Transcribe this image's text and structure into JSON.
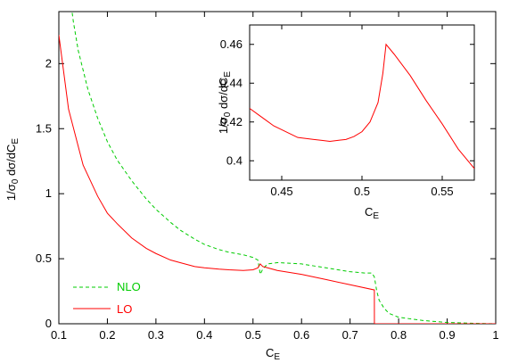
{
  "chart_data": [
    {
      "type": "line",
      "xlabel": "C_E",
      "ylabel": "1/σ_0 dσ/dC_E",
      "xlim": [
        0.1,
        1.0
      ],
      "ylim": [
        0,
        2.4
      ],
      "xticks": [
        "0.1",
        "0.2",
        "0.3",
        "0.4",
        "0.5",
        "0.6",
        "0.7",
        "0.8",
        "0.9",
        "1"
      ],
      "yticks": [
        "0",
        "0.5",
        "1",
        "1.5",
        "2"
      ],
      "grid": false,
      "legend": "bottom-left",
      "series": [
        {
          "name": "NLO",
          "color": "#00cc00",
          "style": "dashed",
          "x": [
            0.1,
            0.12,
            0.13,
            0.14,
            0.15,
            0.16,
            0.18,
            0.2,
            0.22,
            0.25,
            0.28,
            0.3,
            0.33,
            0.35,
            0.38,
            0.4,
            0.43,
            0.45,
            0.48,
            0.5,
            0.51,
            0.515,
            0.52,
            0.53,
            0.55,
            0.6,
            0.65,
            0.7,
            0.73,
            0.745,
            0.75,
            0.755,
            0.76,
            0.77,
            0.78,
            0.8,
            0.85,
            0.9,
            0.95,
            1.0
          ],
          "y": [
            3.2,
            2.6,
            2.32,
            2.1,
            1.95,
            1.8,
            1.58,
            1.4,
            1.26,
            1.1,
            0.96,
            0.88,
            0.78,
            0.72,
            0.65,
            0.61,
            0.57,
            0.55,
            0.53,
            0.51,
            0.49,
            0.38,
            0.42,
            0.46,
            0.47,
            0.46,
            0.43,
            0.4,
            0.39,
            0.39,
            0.36,
            0.25,
            0.18,
            0.12,
            0.08,
            0.05,
            0.025,
            0.01,
            0.004,
            0.0
          ]
        },
        {
          "name": "LO",
          "color": "#ff0000",
          "style": "solid",
          "x": [
            0.1,
            0.12,
            0.15,
            0.18,
            0.2,
            0.22,
            0.25,
            0.28,
            0.3,
            0.33,
            0.35,
            0.38,
            0.4,
            0.43,
            0.45,
            0.48,
            0.5,
            0.51,
            0.515,
            0.52,
            0.53,
            0.55,
            0.6,
            0.65,
            0.7,
            0.75,
            0.7501,
            1.0
          ],
          "y": [
            2.22,
            1.65,
            1.22,
            0.98,
            0.85,
            0.77,
            0.66,
            0.58,
            0.54,
            0.49,
            0.47,
            0.44,
            0.43,
            0.42,
            0.415,
            0.41,
            0.415,
            0.43,
            0.46,
            0.44,
            0.43,
            0.41,
            0.38,
            0.34,
            0.3,
            0.26,
            0.0,
            0.0
          ]
        }
      ]
    },
    {
      "type": "line",
      "xlabel": "C_E",
      "ylabel": "1/σ_0 dσ/dC_E",
      "xlim": [
        0.43,
        0.57
      ],
      "ylim": [
        0.39,
        0.47
      ],
      "xticks": [
        "0.45",
        "0.5",
        "0.55"
      ],
      "yticks": [
        "0.4",
        "0.42",
        "0.44",
        "0.46"
      ],
      "series": [
        {
          "color": "#ff0000",
          "style": "solid",
          "x": [
            0.43,
            0.435,
            0.44,
            0.445,
            0.45,
            0.455,
            0.46,
            0.465,
            0.47,
            0.475,
            0.48,
            0.485,
            0.49,
            0.495,
            0.5,
            0.505,
            0.51,
            0.513,
            0.515,
            0.52,
            0.53,
            0.54,
            0.55,
            0.56,
            0.57
          ],
          "y": [
            0.427,
            0.424,
            0.421,
            0.418,
            0.416,
            0.414,
            0.412,
            0.4115,
            0.411,
            0.4105,
            0.41,
            0.4105,
            0.411,
            0.4125,
            0.415,
            0.42,
            0.43,
            0.445,
            0.46,
            0.455,
            0.444,
            0.431,
            0.419,
            0.406,
            0.396
          ]
        }
      ]
    }
  ],
  "legend": {
    "nlo_label": "NLO",
    "lo_label": "LO"
  }
}
